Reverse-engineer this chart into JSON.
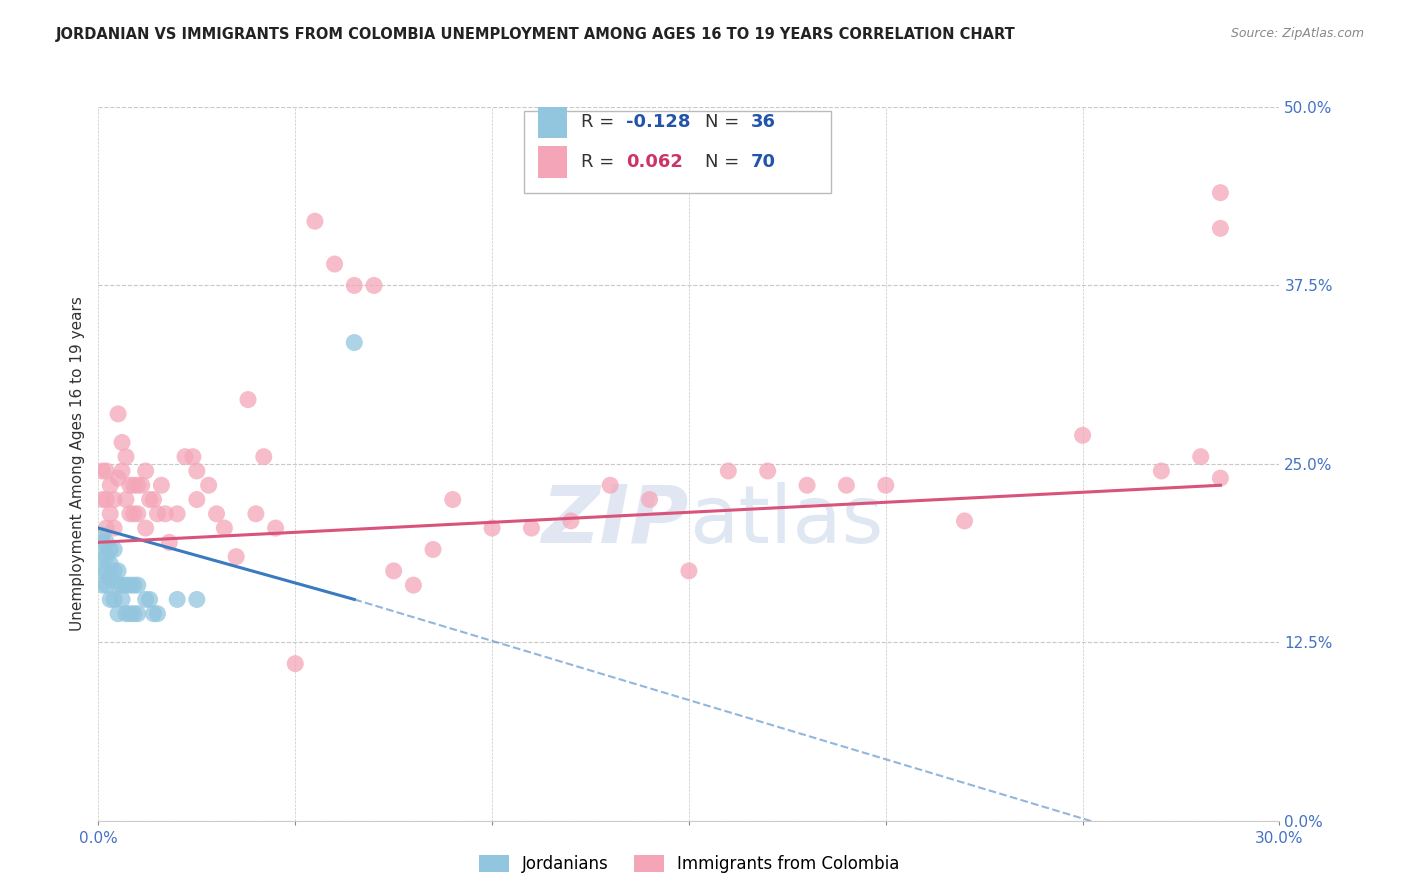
{
  "title": "JORDANIAN VS IMMIGRANTS FROM COLOMBIA UNEMPLOYMENT AMONG AGES 16 TO 19 YEARS CORRELATION CHART",
  "source": "Source: ZipAtlas.com",
  "ylabel_label": "Unemployment Among Ages 16 to 19 years",
  "legend_label1": "Jordanians",
  "legend_label2": "Immigrants from Colombia",
  "color_blue": "#92c5de",
  "color_pink": "#f4a6b8",
  "color_blue_line": "#3a7bbf",
  "color_pink_line": "#d9547a",
  "xlim": [
    0.0,
    0.3
  ],
  "ylim": [
    0.0,
    0.5
  ],
  "xtick_vals": [
    0.0,
    0.05,
    0.1,
    0.15,
    0.2,
    0.25,
    0.3
  ],
  "ytick_vals": [
    0.0,
    0.125,
    0.25,
    0.375,
    0.5
  ],
  "blue_x": [
    0.001,
    0.001,
    0.001,
    0.001,
    0.001,
    0.002,
    0.002,
    0.002,
    0.002,
    0.003,
    0.003,
    0.003,
    0.003,
    0.004,
    0.004,
    0.004,
    0.005,
    0.005,
    0.005,
    0.006,
    0.006,
    0.007,
    0.007,
    0.008,
    0.008,
    0.009,
    0.009,
    0.01,
    0.01,
    0.012,
    0.013,
    0.014,
    0.015,
    0.02,
    0.025,
    0.065
  ],
  "blue_y": [
    0.2,
    0.195,
    0.185,
    0.175,
    0.165,
    0.195,
    0.185,
    0.175,
    0.165,
    0.19,
    0.18,
    0.17,
    0.155,
    0.19,
    0.175,
    0.155,
    0.175,
    0.165,
    0.145,
    0.165,
    0.155,
    0.165,
    0.145,
    0.165,
    0.145,
    0.165,
    0.145,
    0.165,
    0.145,
    0.155,
    0.155,
    0.145,
    0.145,
    0.155,
    0.155,
    0.335
  ],
  "pink_x": [
    0.001,
    0.001,
    0.002,
    0.002,
    0.002,
    0.003,
    0.003,
    0.004,
    0.004,
    0.005,
    0.005,
    0.006,
    0.006,
    0.007,
    0.007,
    0.008,
    0.008,
    0.009,
    0.009,
    0.01,
    0.01,
    0.011,
    0.012,
    0.012,
    0.013,
    0.014,
    0.015,
    0.016,
    0.017,
    0.018,
    0.02,
    0.022,
    0.024,
    0.025,
    0.025,
    0.028,
    0.03,
    0.032,
    0.035,
    0.038,
    0.04,
    0.042,
    0.045,
    0.05,
    0.055,
    0.06,
    0.065,
    0.07,
    0.075,
    0.08,
    0.085,
    0.09,
    0.1,
    0.11,
    0.12,
    0.13,
    0.14,
    0.15,
    0.16,
    0.17,
    0.18,
    0.19,
    0.2,
    0.22,
    0.25,
    0.27,
    0.28,
    0.285,
    0.285,
    0.285
  ],
  "pink_y": [
    0.245,
    0.225,
    0.245,
    0.225,
    0.205,
    0.235,
    0.215,
    0.225,
    0.205,
    0.24,
    0.285,
    0.265,
    0.245,
    0.255,
    0.225,
    0.235,
    0.215,
    0.235,
    0.215,
    0.235,
    0.215,
    0.235,
    0.245,
    0.205,
    0.225,
    0.225,
    0.215,
    0.235,
    0.215,
    0.195,
    0.215,
    0.255,
    0.255,
    0.245,
    0.225,
    0.235,
    0.215,
    0.205,
    0.185,
    0.295,
    0.215,
    0.255,
    0.205,
    0.11,
    0.42,
    0.39,
    0.375,
    0.375,
    0.175,
    0.165,
    0.19,
    0.225,
    0.205,
    0.205,
    0.21,
    0.235,
    0.225,
    0.175,
    0.245,
    0.245,
    0.235,
    0.235,
    0.235,
    0.21,
    0.27,
    0.245,
    0.255,
    0.24,
    0.44,
    0.415
  ],
  "blue_line_x0": 0.0,
  "blue_line_y0": 0.205,
  "blue_line_x1": 0.065,
  "blue_line_y1": 0.155,
  "blue_line_xdash0": 0.065,
  "blue_line_ydash0": 0.155,
  "blue_line_xdash1": 0.3,
  "blue_line_ydash1": -0.04,
  "pink_line_x0": 0.0,
  "pink_line_y0": 0.195,
  "pink_line_x1": 0.285,
  "pink_line_y1": 0.235
}
